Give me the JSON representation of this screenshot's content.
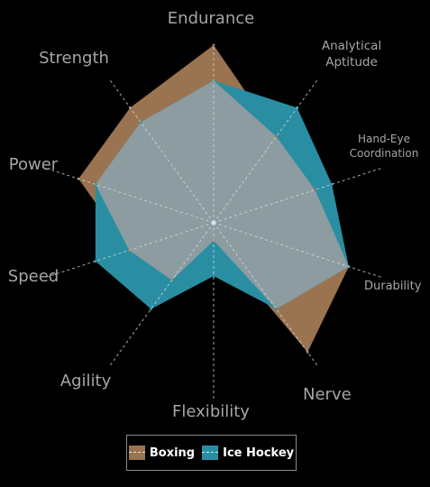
{
  "chart_data": {
    "type": "radar",
    "axes": [
      "Endurance",
      "Analytical Aptitude",
      "Hand-Eye Coordination",
      "Durability",
      "Nerve",
      "Flexibility",
      "Agility",
      "Speed",
      "Power",
      "Strength"
    ],
    "rmax": 10,
    "series": [
      {
        "name": "Boxing",
        "color": "#9a7350",
        "values": [
          10,
          6,
          6,
          8,
          9,
          1,
          4,
          5,
          8,
          8
        ]
      },
      {
        "name": "Ice Hockey",
        "color": "#2a8ea3",
        "values": [
          8,
          8,
          7,
          8,
          6,
          3,
          6,
          7,
          7,
          7
        ]
      }
    ],
    "grid": true,
    "legend": "bottom-center"
  }
}
